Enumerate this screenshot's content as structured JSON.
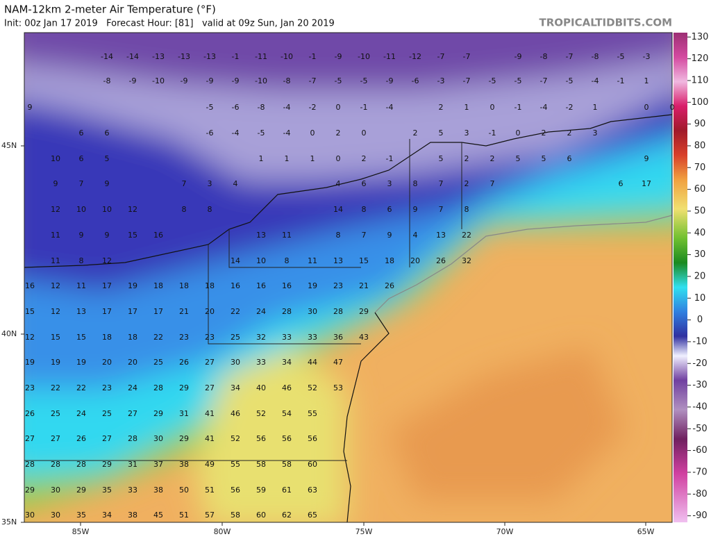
{
  "header": {
    "title": "NAM-12km 2-meter Air Temperature (°F)",
    "subtitle": "Init: 00z Jan 17 2019   Forecast Hour: [81]   valid at 09z Sun, Jan 20 2019",
    "watermark": "TROPICALTIDBITS.COM"
  },
  "colorbar": {
    "lim": [
      -93,
      132
    ],
    "ticks": [
      130,
      120,
      110,
      100,
      90,
      80,
      70,
      60,
      50,
      40,
      30,
      20,
      10,
      0,
      -10,
      -20,
      -30,
      -40,
      -50,
      -60,
      -70,
      -80,
      -90
    ]
  },
  "latitude_labels": [
    "45N",
    "40N",
    "35N"
  ],
  "longitude_labels": [
    "85W",
    "80W",
    "75W",
    "70W",
    "65W"
  ],
  "station_rows": [
    [
      null,
      null,
      null,
      -14,
      -14,
      -13,
      -13,
      -13,
      -1,
      -11,
      -10,
      -1,
      -9,
      -10,
      -11,
      -12,
      -7,
      -7,
      null,
      -9,
      -8,
      -7,
      -8,
      -5,
      -3,
      null
    ],
    [
      null,
      null,
      null,
      -8,
      -9,
      -10,
      -9,
      -9,
      -9,
      -10,
      -8,
      -7,
      -5,
      -5,
      -9,
      -6,
      -3,
      -7,
      -5,
      -5,
      -7,
      -5,
      -4,
      -1,
      1,
      null
    ],
    [
      9,
      null,
      null,
      null,
      null,
      null,
      null,
      -5,
      -6,
      -8,
      -4,
      -2,
      0,
      -1,
      -4,
      null,
      2,
      1,
      0,
      -1,
      -4,
      -2,
      1,
      null,
      0,
      0
    ],
    [
      null,
      null,
      6,
      6,
      null,
      null,
      null,
      -6,
      -4,
      -5,
      -4,
      0,
      2,
      0,
      null,
      2,
      5,
      3,
      -1,
      0,
      2,
      2,
      3,
      null,
      null,
      null
    ],
    [
      null,
      10,
      6,
      5,
      null,
      null,
      null,
      null,
      null,
      1,
      1,
      1,
      0,
      2,
      -1,
      null,
      5,
      2,
      2,
      5,
      5,
      6,
      null,
      null,
      9,
      null
    ],
    [
      null,
      9,
      7,
      9,
      null,
      null,
      7,
      3,
      4,
      null,
      null,
      null,
      4,
      6,
      3,
      8,
      7,
      2,
      7,
      null,
      null,
      null,
      null,
      6,
      17,
      null
    ],
    [
      null,
      12,
      10,
      10,
      12,
      null,
      8,
      8,
      null,
      null,
      null,
      null,
      14,
      8,
      6,
      9,
      7,
      8,
      null,
      null,
      null,
      null,
      null,
      null,
      null,
      null
    ],
    [
      null,
      11,
      9,
      9,
      15,
      16,
      null,
      null,
      null,
      13,
      11,
      null,
      8,
      7,
      9,
      4,
      13,
      22,
      null,
      null,
      null,
      null,
      null,
      null,
      null,
      null
    ],
    [
      null,
      11,
      8,
      12,
      null,
      null,
      null,
      null,
      14,
      10,
      8,
      11,
      13,
      15,
      18,
      20,
      26,
      32,
      null,
      null,
      null,
      null,
      null,
      null,
      null,
      null
    ],
    [
      16,
      12,
      11,
      17,
      19,
      18,
      18,
      18,
      16,
      16,
      16,
      19,
      23,
      21,
      26,
      null,
      null,
      null,
      null,
      null,
      null,
      null,
      null,
      null,
      null,
      null
    ],
    [
      15,
      12,
      13,
      17,
      17,
      17,
      21,
      20,
      22,
      24,
      28,
      30,
      28,
      29,
      null,
      null,
      null,
      null,
      null,
      null,
      null,
      null,
      null,
      null,
      null,
      null
    ],
    [
      12,
      15,
      15,
      18,
      18,
      22,
      23,
      23,
      25,
      32,
      33,
      33,
      36,
      43,
      null,
      null,
      null,
      null,
      null,
      null,
      null,
      null,
      null,
      null,
      null,
      null
    ],
    [
      19,
      19,
      19,
      20,
      20,
      25,
      26,
      27,
      30,
      33,
      34,
      44,
      47,
      null,
      null,
      null,
      null,
      null,
      null,
      null,
      null,
      null,
      null,
      null,
      null,
      null
    ],
    [
      23,
      22,
      22,
      23,
      24,
      28,
      29,
      27,
      34,
      40,
      46,
      52,
      53,
      null,
      null,
      null,
      null,
      null,
      null,
      null,
      null,
      null,
      null,
      null,
      null,
      null
    ],
    [
      26,
      25,
      24,
      25,
      27,
      29,
      31,
      41,
      46,
      52,
      54,
      55,
      null,
      null,
      null,
      null,
      null,
      null,
      null,
      null,
      null,
      null,
      null,
      null,
      null,
      null
    ],
    [
      27,
      27,
      26,
      27,
      28,
      30,
      29,
      41,
      52,
      56,
      56,
      56,
      null,
      null,
      null,
      null,
      null,
      null,
      null,
      null,
      null,
      null,
      null,
      null,
      null,
      null
    ],
    [
      28,
      28,
      28,
      29,
      31,
      37,
      38,
      49,
      55,
      58,
      58,
      60,
      null,
      null,
      null,
      null,
      null,
      null,
      null,
      null,
      null,
      null,
      null,
      null,
      null,
      null
    ],
    [
      29,
      30,
      29,
      35,
      33,
      38,
      50,
      51,
      56,
      59,
      61,
      63,
      null,
      null,
      null,
      null,
      null,
      null,
      null,
      null,
      null,
      null,
      null,
      null,
      null,
      null
    ],
    [
      30,
      30,
      35,
      34,
      38,
      45,
      51,
      57,
      58,
      60,
      62,
      65,
      null,
      null,
      null,
      null,
      null,
      null,
      null,
      null,
      null,
      null,
      null,
      null,
      null,
      null
    ]
  ]
}
